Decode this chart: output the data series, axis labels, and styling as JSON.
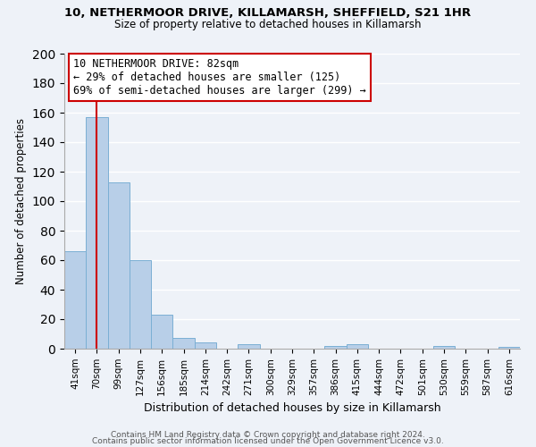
{
  "title1": "10, NETHERMOOR DRIVE, KILLAMARSH, SHEFFIELD, S21 1HR",
  "title2": "Size of property relative to detached houses in Killamarsh",
  "xlabel": "Distribution of detached houses by size in Killamarsh",
  "ylabel": "Number of detached properties",
  "bar_labels": [
    "41sqm",
    "70sqm",
    "99sqm",
    "127sqm",
    "156sqm",
    "185sqm",
    "214sqm",
    "242sqm",
    "271sqm",
    "300sqm",
    "329sqm",
    "357sqm",
    "386sqm",
    "415sqm",
    "444sqm",
    "472sqm",
    "501sqm",
    "530sqm",
    "559sqm",
    "587sqm",
    "616sqm"
  ],
  "bar_values": [
    66,
    157,
    113,
    60,
    23,
    7,
    4,
    0,
    3,
    0,
    0,
    0,
    2,
    3,
    0,
    0,
    0,
    2,
    0,
    0,
    1
  ],
  "bar_color": "#b8cfe8",
  "bar_edge_color": "#7bafd4",
  "annotation_title": "10 NETHERMOOR DRIVE: 82sqm",
  "annotation_line1": "← 29% of detached houses are smaller (125)",
  "annotation_line2": "69% of semi-detached houses are larger (299) →",
  "annotation_box_color": "#ffffff",
  "annotation_box_edge": "#cc0000",
  "vline_color": "#cc0000",
  "vline_x": 1.0,
  "ylim": [
    0,
    200
  ],
  "yticks": [
    0,
    20,
    40,
    60,
    80,
    100,
    120,
    140,
    160,
    180,
    200
  ],
  "footer1": "Contains HM Land Registry data © Crown copyright and database right 2024.",
  "footer2": "Contains public sector information licensed under the Open Government Licence v3.0.",
  "background_color": "#eef2f8",
  "grid_color": "#ffffff"
}
